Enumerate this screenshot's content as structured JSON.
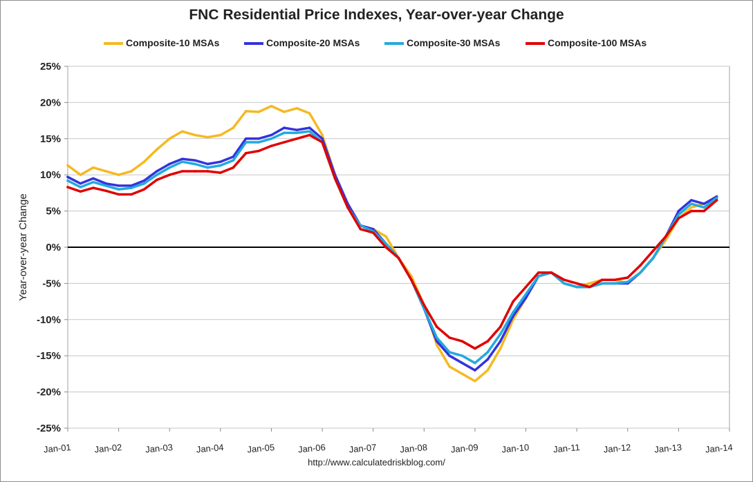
{
  "source": "http://www.calculatedriskblog.com/",
  "chart_data": {
    "type": "line",
    "title": "FNC Residential Price Indexes, Year-over-year Change",
    "xlabel": "",
    "ylabel": "Year-over-year Change",
    "x_ticks": [
      "Jan-01",
      "Jan-02",
      "Jan-03",
      "Jan-04",
      "Jan-05",
      "Jan-06",
      "Jan-07",
      "Jan-08",
      "Jan-09",
      "Jan-10",
      "Jan-11",
      "Jan-12",
      "Jan-13",
      "Jan-14"
    ],
    "y_ticks": [
      "25%",
      "20%",
      "15%",
      "10%",
      "5%",
      "0%",
      "-5%",
      "-10%",
      "-15%",
      "-20%",
      "-25%"
    ],
    "ylim": [
      -25,
      25
    ],
    "xlim": [
      "2001-01",
      "2014-01"
    ],
    "grid": "horizontal",
    "legend_position": "top",
    "series": [
      {
        "name": "Composite-10 MSAs",
        "color": "#F5B921",
        "x": [
          "2001-01",
          "2001-04",
          "2001-07",
          "2001-10",
          "2002-01",
          "2002-04",
          "2002-07",
          "2002-10",
          "2003-01",
          "2003-04",
          "2003-07",
          "2003-10",
          "2004-01",
          "2004-04",
          "2004-07",
          "2004-10",
          "2005-01",
          "2005-04",
          "2005-07",
          "2005-10",
          "2006-01",
          "2006-04",
          "2006-07",
          "2006-10",
          "2007-01",
          "2007-04",
          "2007-07",
          "2007-10",
          "2008-01",
          "2008-04",
          "2008-07",
          "2008-10",
          "2009-01",
          "2009-04",
          "2009-07",
          "2009-10",
          "2010-01",
          "2010-04",
          "2010-07",
          "2010-10",
          "2011-01",
          "2011-04",
          "2011-07",
          "2011-10",
          "2012-01",
          "2012-04",
          "2012-07",
          "2012-10",
          "2013-01",
          "2013-04",
          "2013-07",
          "2013-10"
        ],
        "values": [
          11.3,
          10.0,
          11.0,
          10.5,
          10.0,
          10.5,
          11.8,
          13.5,
          15.0,
          16.0,
          15.5,
          15.2,
          15.5,
          16.5,
          18.8,
          18.7,
          19.5,
          18.7,
          19.2,
          18.5,
          15.5,
          10.0,
          6.0,
          3.0,
          2.5,
          1.5,
          -1.5,
          -4.0,
          -8.0,
          -13.5,
          -16.5,
          -17.5,
          -18.5,
          -17.0,
          -14.0,
          -10.0,
          -7.0,
          -4.0,
          -3.5,
          -5.0,
          -5.5,
          -5.0,
          -4.5,
          -4.5,
          -5.0,
          -3.5,
          -1.5,
          1.0,
          4.0,
          5.5,
          6.0,
          7.0
        ]
      },
      {
        "name": "Composite-20 MSAs",
        "color": "#3333DD",
        "x": [
          "2001-01",
          "2001-04",
          "2001-07",
          "2001-10",
          "2002-01",
          "2002-04",
          "2002-07",
          "2002-10",
          "2003-01",
          "2003-04",
          "2003-07",
          "2003-10",
          "2004-01",
          "2004-04",
          "2004-07",
          "2004-10",
          "2005-01",
          "2005-04",
          "2005-07",
          "2005-10",
          "2006-01",
          "2006-04",
          "2006-07",
          "2006-10",
          "2007-01",
          "2007-04",
          "2007-07",
          "2007-10",
          "2008-01",
          "2008-04",
          "2008-07",
          "2008-10",
          "2009-01",
          "2009-04",
          "2009-07",
          "2009-10",
          "2010-01",
          "2010-04",
          "2010-07",
          "2010-10",
          "2011-01",
          "2011-04",
          "2011-07",
          "2011-10",
          "2012-01",
          "2012-04",
          "2012-07",
          "2012-10",
          "2013-01",
          "2013-04",
          "2013-07",
          "2013-10"
        ],
        "values": [
          9.7,
          8.8,
          9.5,
          8.8,
          8.5,
          8.5,
          9.2,
          10.5,
          11.5,
          12.2,
          12.0,
          11.5,
          11.8,
          12.5,
          15.0,
          15.0,
          15.5,
          16.5,
          16.2,
          16.5,
          15.0,
          10.0,
          6.0,
          3.0,
          2.5,
          0.5,
          -1.5,
          -4.5,
          -8.5,
          -13.0,
          -15.0,
          -16.0,
          -17.0,
          -15.5,
          -13.0,
          -9.5,
          -7.0,
          -4.0,
          -3.5,
          -5.0,
          -5.5,
          -5.5,
          -5.0,
          -5.0,
          -5.0,
          -3.5,
          -1.5,
          1.5,
          5.0,
          6.5,
          6.0,
          7.0
        ]
      },
      {
        "name": "Composite-30 MSAs",
        "color": "#22AADD",
        "x": [
          "2001-01",
          "2001-04",
          "2001-07",
          "2001-10",
          "2002-01",
          "2002-04",
          "2002-07",
          "2002-10",
          "2003-01",
          "2003-04",
          "2003-07",
          "2003-10",
          "2004-01",
          "2004-04",
          "2004-07",
          "2004-10",
          "2005-01",
          "2005-04",
          "2005-07",
          "2005-10",
          "2006-01",
          "2006-04",
          "2006-07",
          "2006-10",
          "2007-01",
          "2007-04",
          "2007-07",
          "2007-10",
          "2008-01",
          "2008-04",
          "2008-07",
          "2008-10",
          "2009-01",
          "2009-04",
          "2009-07",
          "2009-10",
          "2010-01",
          "2010-04",
          "2010-07",
          "2010-10",
          "2011-01",
          "2011-04",
          "2011-07",
          "2011-10",
          "2012-01",
          "2012-04",
          "2012-07",
          "2012-10",
          "2013-01",
          "2013-04",
          "2013-07",
          "2013-10"
        ],
        "values": [
          9.2,
          8.3,
          9.0,
          8.5,
          8.0,
          8.2,
          8.8,
          10.0,
          11.0,
          11.8,
          11.5,
          11.0,
          11.3,
          12.0,
          14.5,
          14.5,
          15.0,
          15.8,
          15.8,
          16.0,
          14.5,
          9.5,
          5.5,
          3.0,
          2.2,
          0.5,
          -1.5,
          -4.5,
          -8.5,
          -12.5,
          -14.5,
          -15.0,
          -16.0,
          -14.5,
          -12.0,
          -9.0,
          -6.5,
          -4.0,
          -3.5,
          -5.0,
          -5.5,
          -5.5,
          -5.0,
          -5.0,
          -4.8,
          -3.5,
          -1.5,
          1.5,
          4.5,
          6.0,
          5.5,
          6.8
        ]
      },
      {
        "name": "Composite-100 MSAs",
        "color": "#E00000",
        "x": [
          "2001-01",
          "2001-04",
          "2001-07",
          "2001-10",
          "2002-01",
          "2002-04",
          "2002-07",
          "2002-10",
          "2003-01",
          "2003-04",
          "2003-07",
          "2003-10",
          "2004-01",
          "2004-04",
          "2004-07",
          "2004-10",
          "2005-01",
          "2005-04",
          "2005-07",
          "2005-10",
          "2006-01",
          "2006-04",
          "2006-07",
          "2006-10",
          "2007-01",
          "2007-04",
          "2007-07",
          "2007-10",
          "2008-01",
          "2008-04",
          "2008-07",
          "2008-10",
          "2009-01",
          "2009-04",
          "2009-07",
          "2009-10",
          "2010-01",
          "2010-04",
          "2010-07",
          "2010-10",
          "2011-01",
          "2011-04",
          "2011-07",
          "2011-10",
          "2012-01",
          "2012-04",
          "2012-07",
          "2012-10",
          "2013-01",
          "2013-04",
          "2013-07",
          "2013-10"
        ],
        "values": [
          8.3,
          7.7,
          8.2,
          7.8,
          7.3,
          7.3,
          8.0,
          9.3,
          10.0,
          10.5,
          10.5,
          10.5,
          10.3,
          11.0,
          13.0,
          13.3,
          14.0,
          14.5,
          15.0,
          15.5,
          14.5,
          9.5,
          5.5,
          2.5,
          2.0,
          0.0,
          -1.5,
          -4.5,
          -8.0,
          -11.0,
          -12.5,
          -13.0,
          -14.0,
          -13.0,
          -11.0,
          -7.5,
          -5.5,
          -3.5,
          -3.5,
          -4.5,
          -5.0,
          -5.5,
          -4.5,
          -4.5,
          -4.2,
          -2.5,
          -0.5,
          1.5,
          4.0,
          5.0,
          5.0,
          6.5
        ]
      }
    ]
  }
}
